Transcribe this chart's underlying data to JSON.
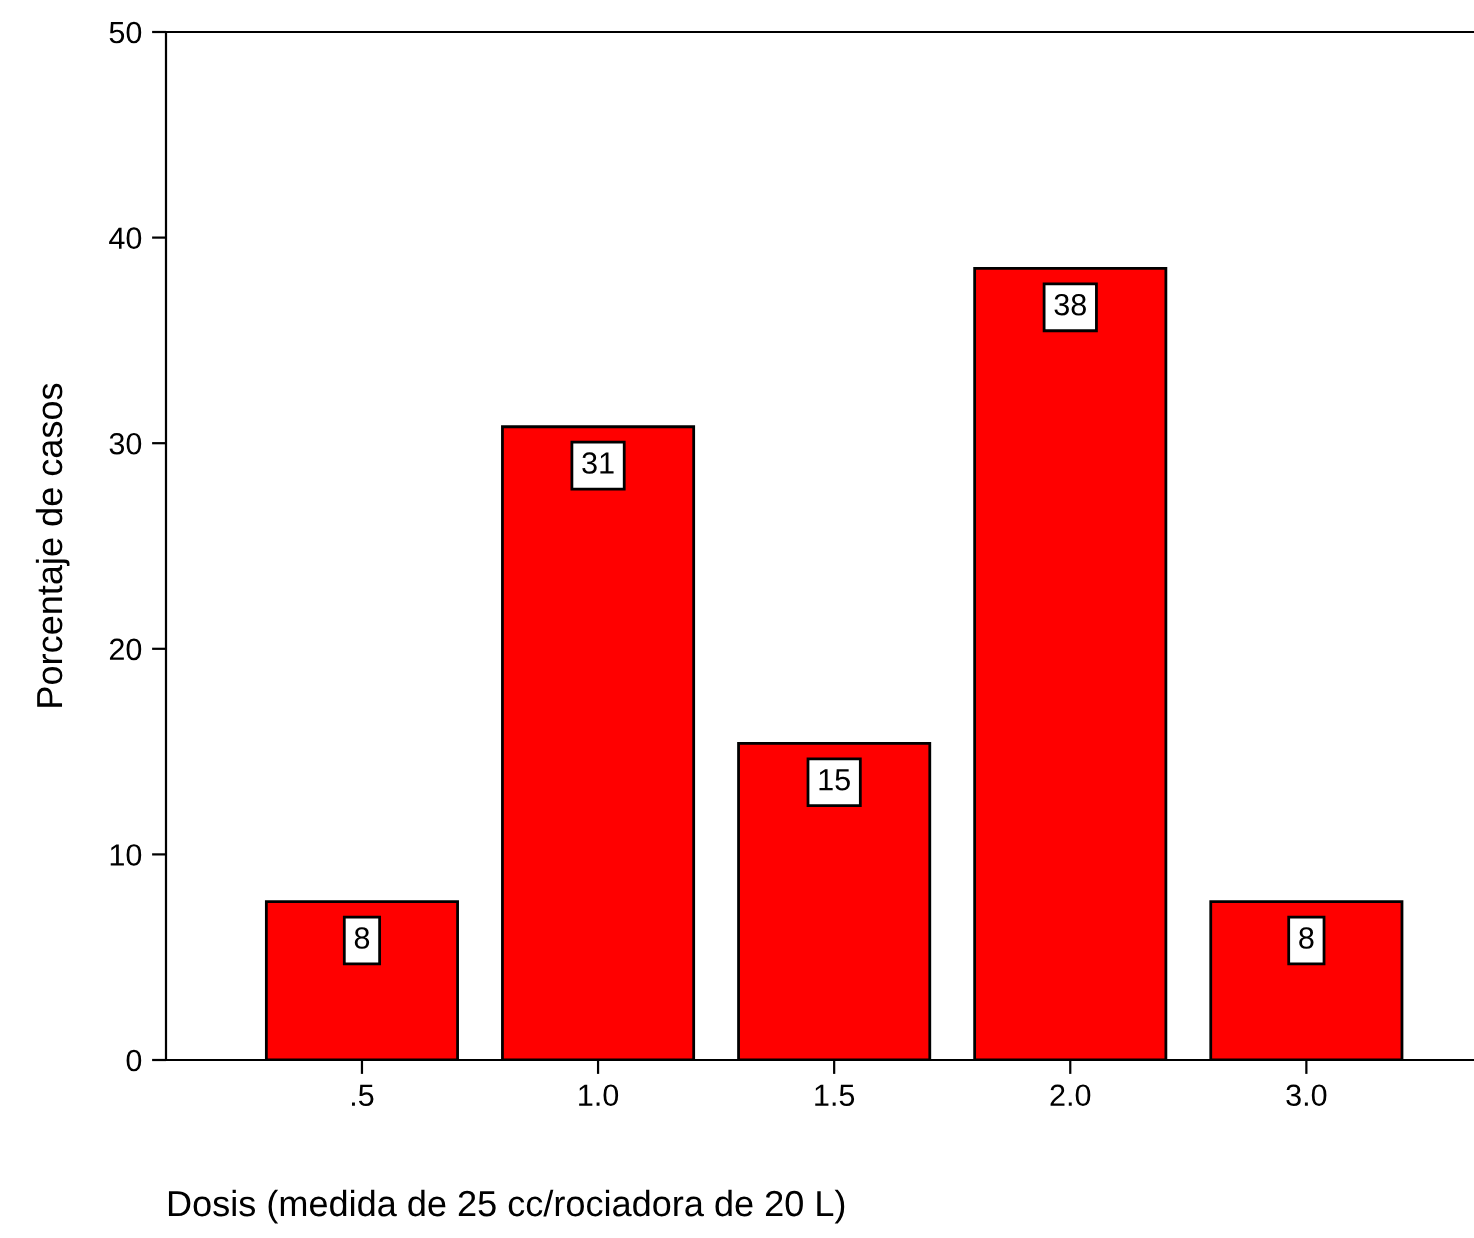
{
  "chart_data": {
    "type": "bar",
    "xlabel": "Dosis (medida de 25 cc/rociadora de 20 L)",
    "ylabel": "Porcentaje de casos",
    "categories": [
      ".5",
      "1.0",
      "1.5",
      "2.0",
      "3.0"
    ],
    "values": [
      7.7,
      30.8,
      15.4,
      38.5,
      7.7
    ],
    "value_labels": [
      "8",
      "31",
      "15",
      "38",
      "8"
    ],
    "color": "#ff0000",
    "ylim": [
      0,
      50
    ],
    "yticks": [
      0,
      10,
      20,
      30,
      40,
      50
    ],
    "grid": false,
    "legend": false
  }
}
